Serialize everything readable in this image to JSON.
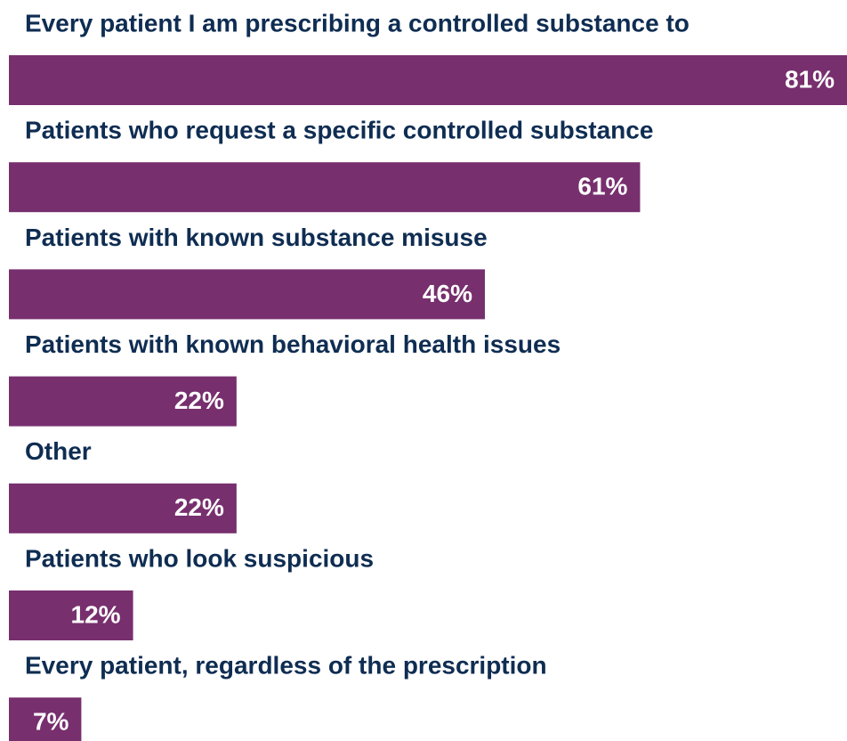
{
  "chart_data": {
    "type": "bar",
    "orientation": "horizontal",
    "categories": [
      "Every patient I am prescribing a controlled substance to",
      "Patients who request a specific controlled substance",
      "Patients with known substance misuse",
      "Patients with known behavioral health issues",
      "Other",
      "Patients who look suspicious",
      "Every patient, regardless of the prescription"
    ],
    "values": [
      81,
      61,
      46,
      22,
      22,
      12,
      7
    ],
    "value_labels": [
      "81%",
      "61%",
      "46%",
      "22%",
      "22%",
      "12%",
      "7%"
    ],
    "color": "#772f6e"
  }
}
